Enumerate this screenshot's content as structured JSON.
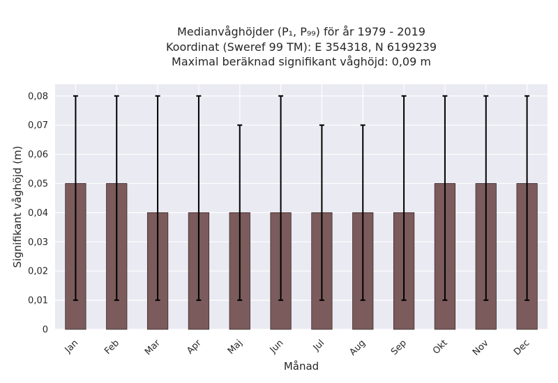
{
  "chart_data": {
    "type": "bar",
    "title_lines": [
      "Medianvåghöjder (P₁, P₉₉) för år 1979 - 2019",
      "Koordinat (Sweref 99 TM): E 354318, N 6199239",
      "Maximal beräknad signifikant våghöjd: 0,09 m"
    ],
    "xlabel": "Månad",
    "ylabel": "Signifikant våghöjd (m)",
    "categories": [
      "Jan",
      "Feb",
      "Mar",
      "Apr",
      "Maj",
      "Jun",
      "Jul",
      "Aug",
      "Sep",
      "Okt",
      "Nov",
      "Dec"
    ],
    "values": [
      0.05,
      0.05,
      0.04,
      0.04,
      0.04,
      0.04,
      0.04,
      0.04,
      0.04,
      0.05,
      0.05,
      0.05
    ],
    "error_low": [
      0.01,
      0.01,
      0.01,
      0.01,
      0.01,
      0.01,
      0.01,
      0.01,
      0.01,
      0.01,
      0.01,
      0.01
    ],
    "error_high": [
      0.08,
      0.08,
      0.08,
      0.08,
      0.07,
      0.08,
      0.07,
      0.07,
      0.08,
      0.08,
      0.08,
      0.08
    ],
    "ylim": [
      0,
      0.084
    ],
    "yticks": [
      0,
      0.01,
      0.02,
      0.03,
      0.04,
      0.05,
      0.06,
      0.07,
      0.08
    ],
    "ytick_labels": [
      "0",
      "0,01",
      "0,02",
      "0,03",
      "0,04",
      "0,05",
      "0,06",
      "0,07",
      "0,08"
    ],
    "grid": true,
    "colors": {
      "bar": "#7b5b5b",
      "bar_edge": "#3a2a2a",
      "plot_bg": "#eaeaf2",
      "grid": "#ffffff",
      "errorbar": "#000000"
    }
  }
}
